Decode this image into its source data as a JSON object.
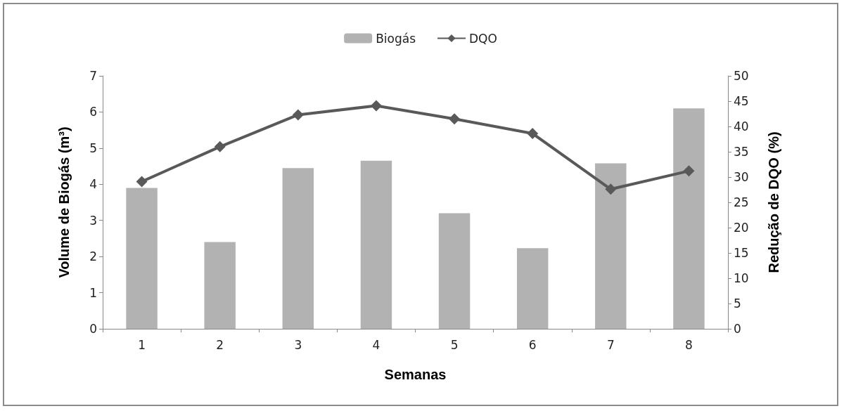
{
  "chart_data": {
    "type": "bar",
    "xlabel": "Semanas",
    "ylabel": "Volume de Biogás (m³)",
    "y2label": "Redução de DQO (%)",
    "categories": [
      "1",
      "2",
      "3",
      "4",
      "5",
      "6",
      "7",
      "8"
    ],
    "series": [
      {
        "name": "Biogás",
        "color": "#b2b2b2",
        "values": [
          3.9,
          2.4,
          4.45,
          4.65,
          3.2,
          2.23,
          4.58,
          6.1
        ]
      },
      {
        "name": "DQO",
        "type": "line",
        "axis": "y2",
        "color": "#595959",
        "marker": "diamond",
        "values": [
          29.1,
          36.0,
          42.3,
          44.1,
          41.5,
          38.6,
          27.6,
          31.2
        ]
      }
    ],
    "ylim": [
      0,
      7
    ],
    "yticks": [
      0,
      1,
      2,
      3,
      4,
      5,
      6,
      7
    ],
    "y2lim": [
      0,
      50
    ],
    "y2ticks": [
      0,
      5,
      10,
      15,
      20,
      25,
      30,
      35,
      40,
      45,
      50
    ],
    "grid": false,
    "legend": "top"
  }
}
